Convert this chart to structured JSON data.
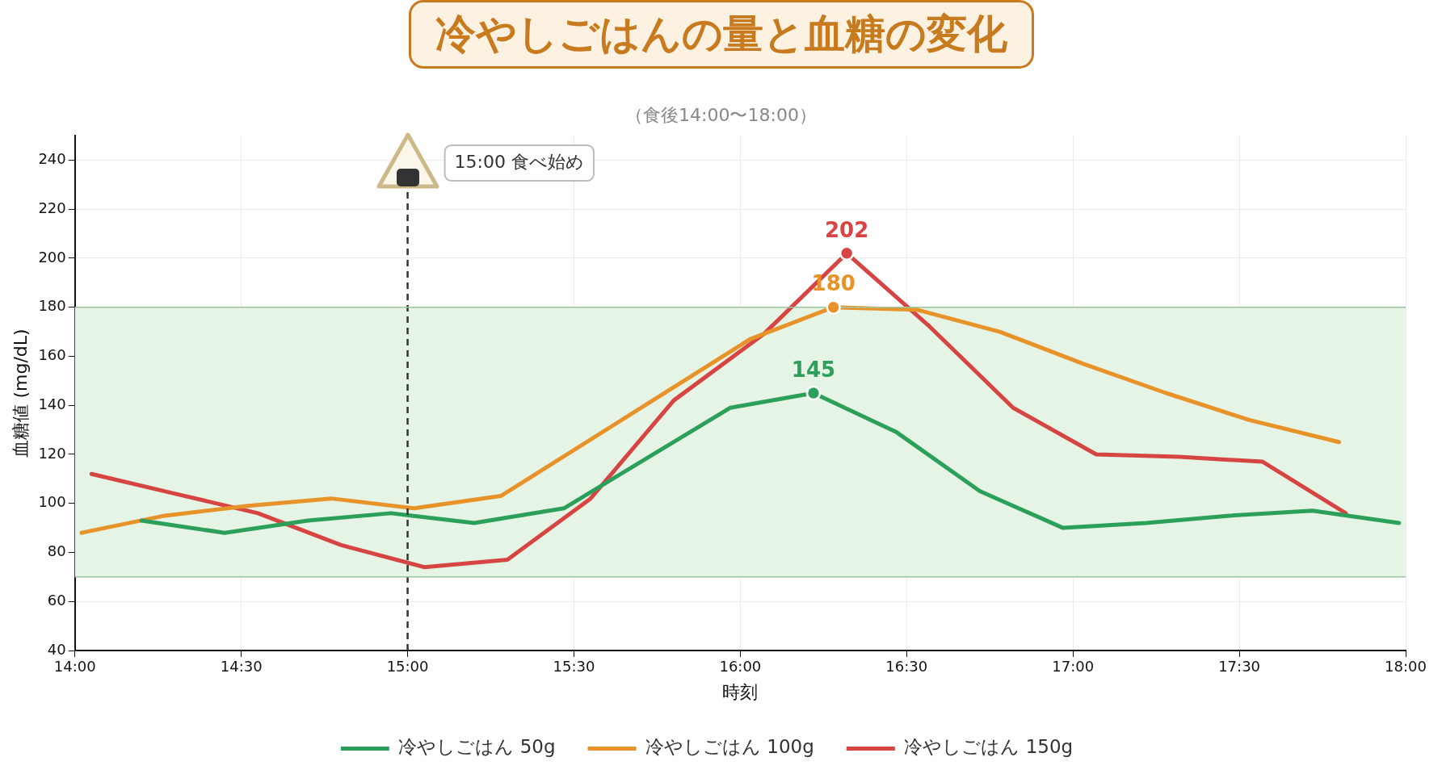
{
  "chart_data": {
    "type": "line",
    "title": "冷やしごはんの量と血糖の変化",
    "subtitle": "（食後14:00〜18:00）",
    "xlabel": "時刻",
    "ylabel": "血糖値 (mg/dL)",
    "xlim": [
      14,
      18
    ],
    "xticks": [
      {
        "value": 14,
        "label": "14:00"
      },
      {
        "value": 14.5,
        "label": "14:30"
      },
      {
        "value": 15,
        "label": "15:00"
      },
      {
        "value": 15.5,
        "label": "15:30"
      },
      {
        "value": 16,
        "label": "16:00"
      },
      {
        "value": 16.5,
        "label": "16:30"
      },
      {
        "value": 17,
        "label": "17:00"
      },
      {
        "value": 17.5,
        "label": "17:30"
      },
      {
        "value": 18,
        "label": "18:00"
      }
    ],
    "ylim": [
      40,
      250
    ],
    "yticks": [
      40,
      60,
      80,
      100,
      120,
      140,
      160,
      180,
      200,
      220,
      240
    ],
    "series": [
      {
        "name": "冷やしごはん 50g",
        "color": "#2ca05a",
        "x": [
          14.2,
          14.45,
          14.7,
          14.95,
          15.2,
          15.47,
          15.97,
          16.22,
          16.47,
          16.72,
          16.97,
          17.22,
          17.47,
          17.72,
          17.98
        ],
        "values": [
          93,
          88,
          93,
          96,
          92,
          98,
          139,
          145,
          129,
          105,
          90,
          92,
          95,
          97,
          92
        ],
        "value_labels": [
          null,
          null,
          null,
          null,
          null,
          null,
          null,
          "145",
          null,
          null,
          null,
          null,
          null,
          null,
          null
        ]
      },
      {
        "name": "冷やしごはん 100g",
        "color": "#e8922a",
        "x": [
          14.02,
          14.27,
          14.52,
          14.77,
          15.02,
          15.28,
          16.03,
          16.28,
          16.53,
          16.78,
          17.03,
          17.28,
          17.53,
          17.8
        ],
        "values": [
          88,
          95,
          99,
          102,
          98,
          103,
          167,
          180,
          179,
          170,
          157,
          145,
          134,
          125
        ],
        "value_labels": [
          null,
          null,
          null,
          null,
          null,
          null,
          null,
          "180",
          null,
          null,
          null,
          null,
          null,
          null
        ]
      },
      {
        "name": "冷やしごはん 150g",
        "color": "#d64541",
        "x": [
          14.05,
          14.3,
          14.55,
          14.8,
          15.05,
          15.3,
          15.55,
          15.8,
          16.07,
          16.32,
          16.57,
          16.82,
          17.07,
          17.32,
          17.57,
          17.82
        ],
        "values": [
          112,
          104,
          96,
          83,
          74,
          77,
          102,
          142,
          169,
          202,
          172,
          139,
          120,
          119,
          117,
          96
        ],
        "value_labels": [
          null,
          null,
          null,
          null,
          null,
          null,
          null,
          null,
          null,
          "202",
          null,
          null,
          null,
          null,
          null,
          null
        ]
      }
    ],
    "bands": [
      {
        "axis": "y",
        "from": 70,
        "to": 180,
        "color": "#e6f4e6"
      }
    ],
    "ref_lines": [
      {
        "axis": "x",
        "value": 15,
        "label": "15:00 食べ始め",
        "color": "#333333",
        "line_style": "dashed"
      },
      {
        "axis": "y",
        "value": 70,
        "color": "#9cc79c",
        "line_style": "solid"
      },
      {
        "axis": "y",
        "value": 180,
        "color": "#9cc79c",
        "line_style": "solid"
      }
    ],
    "grid": true,
    "legend": "bottom",
    "marker": "none",
    "line_style": "solid"
  }
}
